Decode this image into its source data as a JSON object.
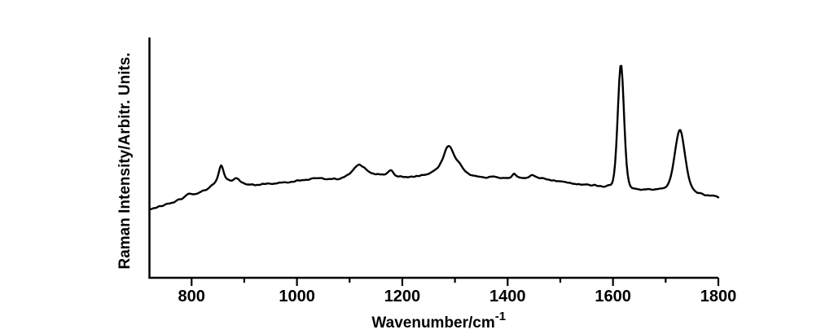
{
  "figure": {
    "background": "#ffffff",
    "ink_color": "#000000",
    "title": ""
  },
  "chart_data": {
    "type": "line",
    "title": "",
    "xlabel": "Wavenumber/cm",
    "xlabel_superscript": "-1",
    "ylabel": "Raman Intensity/Arbitr. Units.",
    "xlim": [
      720,
      1800
    ],
    "ylim": [
      0,
      100
    ],
    "x_ticks_major": [
      800,
      1000,
      1200,
      1400,
      1600,
      1800
    ],
    "x_tick_labels": [
      "800",
      "1000",
      "1200",
      "1400",
      "1600",
      "1800"
    ],
    "x_ticks_minor": [
      900,
      1100,
      1300,
      1500,
      1700
    ],
    "y_ticks": [],
    "grid": "off",
    "legend": "none",
    "line_color": "#000000",
    "line_width": 2.4,
    "peak_positions_cm1": [
      795,
      856,
      884,
      1036,
      1118,
      1178,
      1288,
      1312,
      1372,
      1412,
      1448,
      1615,
      1727
    ],
    "series": [
      {
        "name": "raman-spectrum",
        "x": [
          720,
          722,
          724,
          726,
          728,
          730,
          732,
          734,
          736,
          738,
          740,
          742,
          744,
          746,
          748,
          750,
          752,
          754,
          756,
          758,
          760,
          762,
          764,
          766,
          768,
          770,
          772,
          774,
          776,
          778,
          780,
          782,
          784,
          786,
          788,
          790,
          792,
          794,
          796,
          798,
          800,
          802,
          804,
          806,
          808,
          810,
          812,
          814,
          816,
          818,
          820,
          822,
          824,
          826,
          828,
          830,
          832,
          834,
          836,
          838,
          840,
          842,
          844,
          846,
          848,
          850,
          852,
          854,
          856,
          858,
          860,
          862,
          864,
          866,
          868,
          870,
          872,
          874,
          876,
          878,
          880,
          882,
          884,
          886,
          888,
          890,
          892,
          894,
          896,
          898,
          900,
          902,
          904,
          906,
          908,
          910,
          912,
          914,
          916,
          918,
          920,
          922,
          924,
          926,
          928,
          930,
          932,
          934,
          936,
          938,
          940,
          942,
          944,
          946,
          948,
          950,
          952,
          954,
          956,
          958,
          960,
          962,
          964,
          966,
          968,
          970,
          972,
          974,
          976,
          978,
          980,
          982,
          984,
          986,
          988,
          990,
          992,
          994,
          996,
          998,
          1000,
          1002,
          1004,
          1006,
          1008,
          1010,
          1012,
          1014,
          1016,
          1018,
          1020,
          1022,
          1024,
          1026,
          1028,
          1030,
          1032,
          1034,
          1036,
          1038,
          1040,
          1042,
          1044,
          1046,
          1048,
          1050,
          1052,
          1054,
          1056,
          1058,
          1060,
          1062,
          1064,
          1066,
          1068,
          1070,
          1072,
          1074,
          1076,
          1078,
          1080,
          1082,
          1084,
          1086,
          1088,
          1090,
          1092,
          1094,
          1096,
          1098,
          1100,
          1102,
          1104,
          1106,
          1108,
          1110,
          1112,
          1114,
          1116,
          1118,
          1120,
          1122,
          1124,
          1126,
          1128,
          1130,
          1132,
          1134,
          1136,
          1138,
          1140,
          1142,
          1144,
          1146,
          1148,
          1150,
          1152,
          1154,
          1156,
          1158,
          1160,
          1162,
          1164,
          1166,
          1168,
          1170,
          1172,
          1174,
          1176,
          1178,
          1180,
          1182,
          1184,
          1186,
          1188,
          1190,
          1192,
          1194,
          1196,
          1198,
          1200,
          1202,
          1204,
          1206,
          1208,
          1210,
          1212,
          1214,
          1216,
          1218,
          1220,
          1222,
          1224,
          1226,
          1228,
          1230,
          1232,
          1234,
          1236,
          1238,
          1240,
          1242,
          1244,
          1246,
          1248,
          1250,
          1252,
          1254,
          1256,
          1258,
          1260,
          1262,
          1264,
          1266,
          1268,
          1270,
          1272,
          1274,
          1276,
          1278,
          1280,
          1282,
          1284,
          1286,
          1288,
          1290,
          1292,
          1294,
          1296,
          1298,
          1300,
          1302,
          1304,
          1306,
          1308,
          1310,
          1312,
          1314,
          1316,
          1318,
          1320,
          1322,
          1324,
          1326,
          1328,
          1330,
          1332,
          1334,
          1336,
          1338,
          1340,
          1342,
          1344,
          1346,
          1348,
          1350,
          1352,
          1354,
          1356,
          1358,
          1360,
          1362,
          1364,
          1366,
          1368,
          1370,
          1372,
          1374,
          1376,
          1378,
          1380,
          1382,
          1384,
          1386,
          1388,
          1390,
          1392,
          1394,
          1396,
          1398,
          1400,
          1402,
          1404,
          1406,
          1408,
          1410,
          1412,
          1414,
          1416,
          1418,
          1420,
          1422,
          1424,
          1426,
          1428,
          1430,
          1432,
          1434,
          1436,
          1438,
          1440,
          1442,
          1444,
          1446,
          1448,
          1450,
          1452,
          1454,
          1456,
          1458,
          1460,
          1462,
          1464,
          1466,
          1468,
          1470,
          1472,
          1474,
          1476,
          1478,
          1480,
          1482,
          1484,
          1486,
          1488,
          1490,
          1492,
          1494,
          1496,
          1498,
          1500,
          1502,
          1504,
          1506,
          1508,
          1510,
          1512,
          1514,
          1516,
          1518,
          1520,
          1522,
          1524,
          1526,
          1528,
          1530,
          1532,
          1534,
          1536,
          1538,
          1540,
          1542,
          1544,
          1546,
          1548,
          1550,
          1552,
          1554,
          1556,
          1558,
          1560,
          1562,
          1564,
          1566,
          1568,
          1570,
          1572,
          1574,
          1576,
          1578,
          1580,
          1582,
          1584,
          1586,
          1588,
          1590,
          1592,
          1594,
          1596,
          1598,
          1600,
          1602,
          1604,
          1606,
          1608,
          1610,
          1612,
          1614,
          1616,
          1618,
          1620,
          1622,
          1624,
          1626,
          1628,
          1630,
          1632,
          1634,
          1636,
          1638,
          1640,
          1642,
          1644,
          1646,
          1648,
          1650,
          1652,
          1654,
          1656,
          1658,
          1660,
          1662,
          1664,
          1666,
          1668,
          1670,
          1672,
          1674,
          1676,
          1678,
          1680,
          1682,
          1684,
          1686,
          1688,
          1690,
          1692,
          1694,
          1696,
          1698,
          1700,
          1702,
          1704,
          1706,
          1708,
          1710,
          1712,
          1714,
          1716,
          1718,
          1720,
          1722,
          1724,
          1726,
          1728,
          1730,
          1732,
          1734,
          1736,
          1738,
          1740,
          1742,
          1744,
          1746,
          1748,
          1750,
          1752,
          1754,
          1756,
          1758,
          1760,
          1762,
          1764,
          1766,
          1768,
          1770,
          1772,
          1774,
          1776,
          1778,
          1780,
          1782,
          1784,
          1786,
          1788,
          1790,
          1792,
          1794,
          1796,
          1798,
          1800
        ],
        "y": [
          28.54,
          28.61,
          28.69,
          28.88,
          29.03,
          29.13,
          29.14,
          29.29,
          29.59,
          29.82,
          29.9,
          29.88,
          29.92,
          30.05,
          30.32,
          30.55,
          30.79,
          30.89,
          30.93,
          30.96,
          31.08,
          31.24,
          31.32,
          31.39,
          31.6,
          31.94,
          32.27,
          32.55,
          32.71,
          32.76,
          32.74,
          32.89,
          33.24,
          33.63,
          34.03,
          34.41,
          34.76,
          35.02,
          35.08,
          35.03,
          34.92,
          34.8,
          34.82,
          34.87,
          34.93,
          35.01,
          35.2,
          35.45,
          35.66,
          35.88,
          36.17,
          36.37,
          36.43,
          36.49,
          36.64,
          36.93,
          37.26,
          37.67,
          38.13,
          38.51,
          38.83,
          39.15,
          39.61,
          40.27,
          41.18,
          42.48,
          44.16,
          45.9,
          46.79,
          46.22,
          44.76,
          43.23,
          42.1,
          41.42,
          41.09,
          40.87,
          40.63,
          40.47,
          40.46,
          40.6,
          40.95,
          41.3,
          41.5,
          41.43,
          41.19,
          40.8,
          40.29,
          39.91,
          39.68,
          39.53,
          39.31,
          39.08,
          38.93,
          38.87,
          38.85,
          38.81,
          38.83,
          38.93,
          38.93,
          38.73,
          38.55,
          38.59,
          38.71,
          38.72,
          38.68,
          38.72,
          38.91,
          39.11,
          39.16,
          39.1,
          39.09,
          39.18,
          39.28,
          39.29,
          39.23,
          39.15,
          39.07,
          39.08,
          39.18,
          39.25,
          39.26,
          39.34,
          39.47,
          39.61,
          39.67,
          39.65,
          39.68,
          39.75,
          39.81,
          39.8,
          39.72,
          39.64,
          39.66,
          39.74,
          39.93,
          39.98,
          39.99,
          39.99,
          40.12,
          40.38,
          40.57,
          40.61,
          40.53,
          40.5,
          40.56,
          40.67,
          40.7,
          40.69,
          40.76,
          40.83,
          40.79,
          40.8,
          40.93,
          41.2,
          41.35,
          41.43,
          41.49,
          41.48,
          41.44,
          41.46,
          41.49,
          41.5,
          41.53,
          41.53,
          41.5,
          41.31,
          41.11,
          41.05,
          41.01,
          41.05,
          41.09,
          41.15,
          41.16,
          41.13,
          41.23,
          41.36,
          41.34,
          41.13,
          41.0,
          41.03,
          41.13,
          41.26,
          41.48,
          41.72,
          41.86,
          42.0,
          42.29,
          42.6,
          42.86,
          43.04,
          43.32,
          43.79,
          44.25,
          44.75,
          45.26,
          45.81,
          46.25,
          46.59,
          46.95,
          47.15,
          47.0,
          46.61,
          46.31,
          46.11,
          45.85,
          45.48,
          45.01,
          44.6,
          44.28,
          43.99,
          43.73,
          43.55,
          43.45,
          43.31,
          43.12,
          43.07,
          43.2,
          43.21,
          43.11,
          43.02,
          43.05,
          43.08,
          42.98,
          42.99,
          43.11,
          43.41,
          43.81,
          44.2,
          44.61,
          44.79,
          44.64,
          44.07,
          43.38,
          42.83,
          42.48,
          42.3,
          42.18,
          42.2,
          42.28,
          42.26,
          42.1,
          41.94,
          41.95,
          42.01,
          41.95,
          41.85,
          41.89,
          42.01,
          42.13,
          42.15,
          42.07,
          42.04,
          42.13,
          42.33,
          42.43,
          42.36,
          42.35,
          42.53,
          42.73,
          42.83,
          42.79,
          42.8,
          42.94,
          43.02,
          43.14,
          43.27,
          43.51,
          43.79,
          44.04,
          44.32,
          44.6,
          44.92,
          45.23,
          45.55,
          45.99,
          46.64,
          47.48,
          48.33,
          49.19,
          50.29,
          51.63,
          52.96,
          54.01,
          54.63,
          54.83,
          54.66,
          54.14,
          53.29,
          52.27,
          51.21,
          50.32,
          49.53,
          48.94,
          48.5,
          48.01,
          47.41,
          46.67,
          45.98,
          45.33,
          44.74,
          44.29,
          43.96,
          43.65,
          43.29,
          42.95,
          42.78,
          42.66,
          42.58,
          42.51,
          42.46,
          42.37,
          42.24,
          42.17,
          42.13,
          42.06,
          42.0,
          41.92,
          41.85,
          41.76,
          41.64,
          41.6,
          41.72,
          41.95,
          42.06,
          42.1,
          42.14,
          42.2,
          42.17,
          42.1,
          41.98,
          41.86,
          41.75,
          41.59,
          41.52,
          41.49,
          41.59,
          41.6,
          41.59,
          41.56,
          41.55,
          41.56,
          41.55,
          41.66,
          41.89,
          42.37,
          42.95,
          43.36,
          43.09,
          42.61,
          42.24,
          41.98,
          41.83,
          41.69,
          41.61,
          41.56,
          41.55,
          41.51,
          41.53,
          41.64,
          41.77,
          41.95,
          42.25,
          42.62,
          42.8,
          42.72,
          42.51,
          42.25,
          42.06,
          41.86,
          41.65,
          41.5,
          41.47,
          41.51,
          41.51,
          41.48,
          41.34,
          41.14,
          41.0,
          40.94,
          40.89,
          40.73,
          40.58,
          40.53,
          40.57,
          40.56,
          40.44,
          40.26,
          40.24,
          40.28,
          40.23,
          40.19,
          40.14,
          40.09,
          40.01,
          39.96,
          39.87,
          39.73,
          39.6,
          39.58,
          39.57,
          39.44,
          39.26,
          39.18,
          39.15,
          39.07,
          38.98,
          38.93,
          39.03,
          38.99,
          38.87,
          38.77,
          38.78,
          38.84,
          38.85,
          38.87,
          38.92,
          38.88,
          38.73,
          38.58,
          38.44,
          38.44,
          38.55,
          38.73,
          38.7,
          38.46,
          38.28,
          38.19,
          38.23,
          38.24,
          38.13,
          38.0,
          37.9,
          37.94,
          38.07,
          38.28,
          38.51,
          38.63,
          38.64,
          38.8,
          39.33,
          40.68,
          43.27,
          47.68,
          54.38,
          63.21,
          73.15,
          82.22,
          87.95,
          88.04,
          82.37,
          72.99,
          62.7,
          53.73,
          47.12,
          42.9,
          40.28,
          38.72,
          37.87,
          37.46,
          37.27,
          37.21,
          37.15,
          37.06,
          36.96,
          36.87,
          36.81,
          36.66,
          36.66,
          36.73,
          36.81,
          36.82,
          36.81,
          36.9,
          36.96,
          36.96,
          36.89,
          36.81,
          36.72,
          36.69,
          36.74,
          36.85,
          36.92,
          36.94,
          37.02,
          37.12,
          37.18,
          37.21,
          37.26,
          37.37,
          37.5,
          37.72,
          38.13,
          38.8,
          39.72,
          40.92,
          42.5,
          44.51,
          46.98,
          49.75,
          52.7,
          55.58,
          58.13,
          60.18,
          61.38,
          61.4,
          60.21,
          58.01,
          55.2,
          52.19,
          49.24,
          46.43,
          43.86,
          41.73,
          40.08,
          38.84,
          37.85,
          37.07,
          36.53,
          36.1,
          35.73,
          35.45,
          35.33,
          35.32,
          35.27,
          35.16,
          34.97,
          34.69,
          34.41,
          34.36,
          34.41,
          34.38,
          34.3,
          34.22,
          34.25,
          34.3,
          34.27,
          34.19,
          34.11,
          34.0,
          33.76,
          33.52
        ]
      }
    ]
  }
}
